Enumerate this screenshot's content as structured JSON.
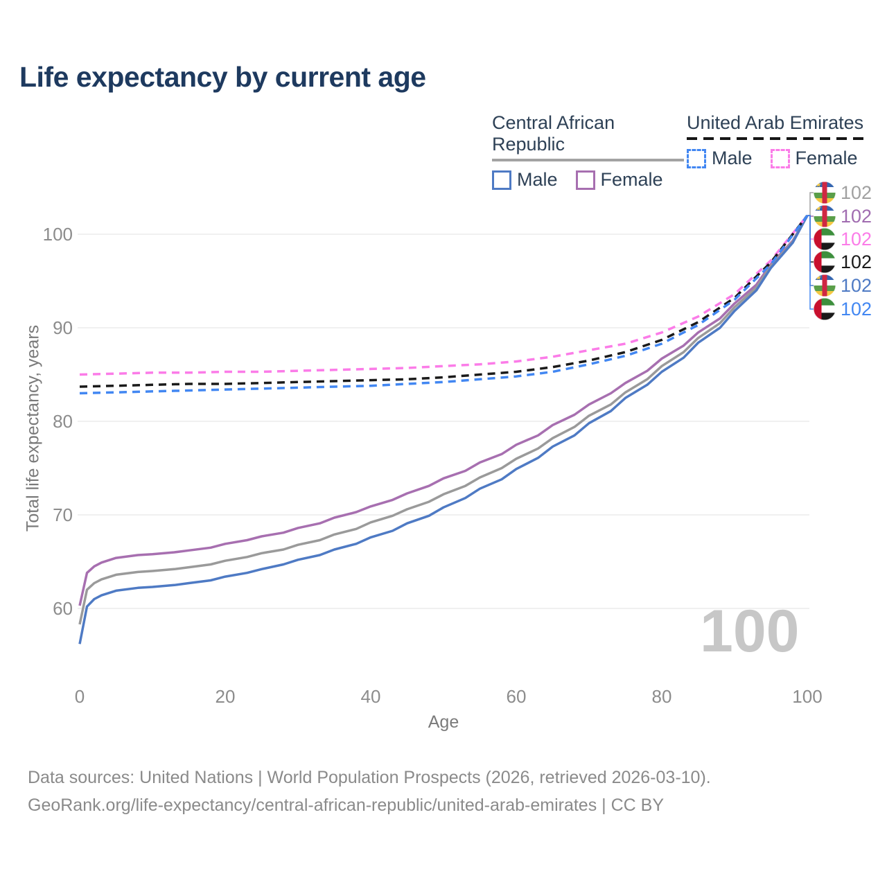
{
  "chart_data": {
    "type": "line",
    "title": "Life expectancy by current age",
    "xlabel": "Age",
    "ylabel": "Total life expectancy, years",
    "xlim": [
      0,
      100
    ],
    "ylim": [
      55,
      104
    ],
    "xticks": [
      0,
      20,
      40,
      60,
      80,
      100
    ],
    "yticks": [
      60,
      70,
      80,
      90,
      100
    ],
    "grid": "horizontal-only",
    "legend_position": "top-right",
    "series": [
      {
        "id": "car_female",
        "name": "Central African Republic — Female",
        "country": "Central African Republic",
        "sex": "Female",
        "style": "solid",
        "color": "#a76fb0",
        "points": [
          [
            0,
            60.3
          ],
          [
            1,
            63.8
          ],
          [
            2,
            64.5
          ],
          [
            3,
            64.9
          ],
          [
            5,
            65.4
          ],
          [
            8,
            65.7
          ],
          [
            10,
            65.8
          ],
          [
            13,
            66.0
          ],
          [
            15,
            66.2
          ],
          [
            18,
            66.5
          ],
          [
            20,
            66.9
          ],
          [
            23,
            67.3
          ],
          [
            25,
            67.7
          ],
          [
            28,
            68.1
          ],
          [
            30,
            68.6
          ],
          [
            33,
            69.1
          ],
          [
            35,
            69.7
          ],
          [
            38,
            70.3
          ],
          [
            40,
            70.9
          ],
          [
            43,
            71.6
          ],
          [
            45,
            72.3
          ],
          [
            48,
            73.1
          ],
          [
            50,
            73.9
          ],
          [
            53,
            74.7
          ],
          [
            55,
            75.6
          ],
          [
            58,
            76.5
          ],
          [
            60,
            77.5
          ],
          [
            63,
            78.5
          ],
          [
            65,
            79.6
          ],
          [
            68,
            80.7
          ],
          [
            70,
            81.8
          ],
          [
            73,
            83.0
          ],
          [
            75,
            84.1
          ],
          [
            78,
            85.4
          ],
          [
            80,
            86.7
          ],
          [
            83,
            88.1
          ],
          [
            85,
            89.5
          ],
          [
            88,
            91.0
          ],
          [
            90,
            92.6
          ],
          [
            93,
            94.6
          ],
          [
            95,
            96.8
          ],
          [
            98,
            99.3
          ],
          [
            100,
            102
          ]
        ]
      },
      {
        "id": "car_total",
        "name": "Central African Republic — All",
        "country": "Central African Republic",
        "sex": "All",
        "style": "solid",
        "color": "#9a9a9a",
        "points": [
          [
            0,
            58.3
          ],
          [
            1,
            62.0
          ],
          [
            2,
            62.7
          ],
          [
            3,
            63.1
          ],
          [
            5,
            63.6
          ],
          [
            8,
            63.9
          ],
          [
            10,
            64.0
          ],
          [
            13,
            64.2
          ],
          [
            15,
            64.4
          ],
          [
            18,
            64.7
          ],
          [
            20,
            65.1
          ],
          [
            23,
            65.5
          ],
          [
            25,
            65.9
          ],
          [
            28,
            66.3
          ],
          [
            30,
            66.8
          ],
          [
            33,
            67.3
          ],
          [
            35,
            67.9
          ],
          [
            38,
            68.5
          ],
          [
            40,
            69.2
          ],
          [
            43,
            69.9
          ],
          [
            45,
            70.6
          ],
          [
            48,
            71.4
          ],
          [
            50,
            72.2
          ],
          [
            53,
            73.1
          ],
          [
            55,
            74.0
          ],
          [
            58,
            75.0
          ],
          [
            60,
            76.0
          ],
          [
            63,
            77.1
          ],
          [
            65,
            78.2
          ],
          [
            68,
            79.4
          ],
          [
            70,
            80.6
          ],
          [
            73,
            81.8
          ],
          [
            75,
            83.1
          ],
          [
            78,
            84.5
          ],
          [
            80,
            85.9
          ],
          [
            83,
            87.4
          ],
          [
            85,
            88.9
          ],
          [
            88,
            90.5
          ],
          [
            90,
            92.2
          ],
          [
            93,
            94.3
          ],
          [
            95,
            96.6
          ],
          [
            98,
            99.2
          ],
          [
            100,
            102
          ]
        ]
      },
      {
        "id": "car_male",
        "name": "Central African Republic — Male",
        "country": "Central African Republic",
        "sex": "Male",
        "style": "solid",
        "color": "#4e7ac4",
        "points": [
          [
            0,
            56.2
          ],
          [
            1,
            60.2
          ],
          [
            2,
            61.0
          ],
          [
            3,
            61.4
          ],
          [
            5,
            61.9
          ],
          [
            8,
            62.2
          ],
          [
            10,
            62.3
          ],
          [
            13,
            62.5
          ],
          [
            15,
            62.7
          ],
          [
            18,
            63.0
          ],
          [
            20,
            63.4
          ],
          [
            23,
            63.8
          ],
          [
            25,
            64.2
          ],
          [
            28,
            64.7
          ],
          [
            30,
            65.2
          ],
          [
            33,
            65.7
          ],
          [
            35,
            66.3
          ],
          [
            38,
            66.9
          ],
          [
            40,
            67.6
          ],
          [
            43,
            68.3
          ],
          [
            45,
            69.1
          ],
          [
            48,
            69.9
          ],
          [
            50,
            70.8
          ],
          [
            53,
            71.8
          ],
          [
            55,
            72.8
          ],
          [
            58,
            73.8
          ],
          [
            60,
            74.9
          ],
          [
            63,
            76.1
          ],
          [
            65,
            77.3
          ],
          [
            68,
            78.5
          ],
          [
            70,
            79.8
          ],
          [
            73,
            81.1
          ],
          [
            75,
            82.5
          ],
          [
            78,
            83.9
          ],
          [
            80,
            85.3
          ],
          [
            83,
            86.8
          ],
          [
            85,
            88.4
          ],
          [
            88,
            90.0
          ],
          [
            90,
            91.8
          ],
          [
            93,
            94.0
          ],
          [
            95,
            96.4
          ],
          [
            98,
            99.1
          ],
          [
            100,
            102
          ]
        ]
      },
      {
        "id": "uae_female",
        "name": "United Arab Emirates — Female",
        "country": "United Arab Emirates",
        "sex": "Female",
        "style": "dashed",
        "color": "#fb7ce8",
        "points": [
          [
            0,
            85.0
          ],
          [
            5,
            85.1
          ],
          [
            10,
            85.2
          ],
          [
            15,
            85.2
          ],
          [
            20,
            85.3
          ],
          [
            25,
            85.3
          ],
          [
            30,
            85.4
          ],
          [
            35,
            85.5
          ],
          [
            40,
            85.6
          ],
          [
            45,
            85.7
          ],
          [
            50,
            85.9
          ],
          [
            55,
            86.1
          ],
          [
            60,
            86.4
          ],
          [
            65,
            86.9
          ],
          [
            70,
            87.6
          ],
          [
            75,
            88.3
          ],
          [
            80,
            89.5
          ],
          [
            85,
            91.2
          ],
          [
            90,
            93.6
          ],
          [
            95,
            97.2
          ],
          [
            100,
            102
          ]
        ]
      },
      {
        "id": "uae_total",
        "name": "United Arab Emirates — All",
        "country": "United Arab Emirates",
        "sex": "All",
        "style": "dashed",
        "color": "#1a1a1a",
        "points": [
          [
            0,
            83.7
          ],
          [
            5,
            83.8
          ],
          [
            10,
            83.9
          ],
          [
            15,
            84.0
          ],
          [
            20,
            84.0
          ],
          [
            25,
            84.1
          ],
          [
            30,
            84.2
          ],
          [
            35,
            84.3
          ],
          [
            40,
            84.4
          ],
          [
            45,
            84.5
          ],
          [
            50,
            84.7
          ],
          [
            55,
            85.0
          ],
          [
            60,
            85.3
          ],
          [
            65,
            85.8
          ],
          [
            70,
            86.5
          ],
          [
            75,
            87.4
          ],
          [
            80,
            88.7
          ],
          [
            85,
            90.6
          ],
          [
            90,
            93.2
          ],
          [
            95,
            97.0
          ],
          [
            100,
            102
          ]
        ]
      },
      {
        "id": "uae_male",
        "name": "United Arab Emirates — Male",
        "country": "United Arab Emirates",
        "sex": "Male",
        "style": "dashed",
        "color": "#4287f2",
        "points": [
          [
            0,
            83.0
          ],
          [
            5,
            83.1
          ],
          [
            10,
            83.2
          ],
          [
            15,
            83.3
          ],
          [
            20,
            83.4
          ],
          [
            25,
            83.5
          ],
          [
            30,
            83.6
          ],
          [
            35,
            83.7
          ],
          [
            40,
            83.8
          ],
          [
            45,
            84.0
          ],
          [
            50,
            84.2
          ],
          [
            55,
            84.5
          ],
          [
            60,
            84.8
          ],
          [
            65,
            85.3
          ],
          [
            70,
            86.1
          ],
          [
            75,
            87.0
          ],
          [
            80,
            88.3
          ],
          [
            85,
            90.3
          ],
          [
            90,
            93.0
          ],
          [
            95,
            96.8
          ],
          [
            100,
            102
          ]
        ]
      }
    ]
  },
  "legend": {
    "groups": [
      {
        "label": "Central African Republic",
        "line_style": "solid",
        "items": [
          {
            "label": "Male",
            "color": "#4e7ac4"
          },
          {
            "label": "Female",
            "color": "#a76fb0"
          }
        ]
      },
      {
        "label": "United Arab Emirates",
        "line_style": "dashed",
        "items": [
          {
            "label": "Male",
            "color": "#4287f2"
          },
          {
            "label": "Female",
            "color": "#fb7ce8"
          }
        ]
      }
    ]
  },
  "right_labels": [
    {
      "flag": "car",
      "country": "Central African Republic",
      "value": "102",
      "color": "#a0a0a0"
    },
    {
      "flag": "car",
      "country": "Central African Republic",
      "value": "102",
      "color": "#a06cb0"
    },
    {
      "flag": "uae",
      "country": "United Arab Emirates",
      "value": "102",
      "color": "#fb7ce8"
    },
    {
      "flag": "uae",
      "country": "United Arab Emirates",
      "value": "102",
      "color": "#1a1a1a"
    },
    {
      "flag": "car",
      "country": "Central African Republic",
      "value": "102",
      "color": "#4e7ac4"
    },
    {
      "flag": "uae",
      "country": "United Arab Emirates",
      "value": "102",
      "color": "#4287f2"
    }
  ],
  "flag_colors": {
    "car": {
      "blue": "#3566b0",
      "white": "#ffffff",
      "green": "#5a9e49",
      "yellow": "#f5c843",
      "red": "#cf2742"
    },
    "uae": {
      "red": "#c8102e",
      "green": "#3d8f3d",
      "white": "#ffffff",
      "black": "#1a1a1a"
    }
  },
  "watermark": {
    "text": "100"
  },
  "footer": {
    "line1": "Data sources: United Nations | World Population Prospects (2026, retrieved 2026-03-10).",
    "line2": "GeoRank.org/life-expectancy/central-african-republic/united-arab-emirates | CC BY"
  },
  "colors": {
    "title": "#1e3a5f",
    "axis_text": "#8c8c8c",
    "grid": "#e7e7e7",
    "watermark": "#c7c7c7"
  }
}
